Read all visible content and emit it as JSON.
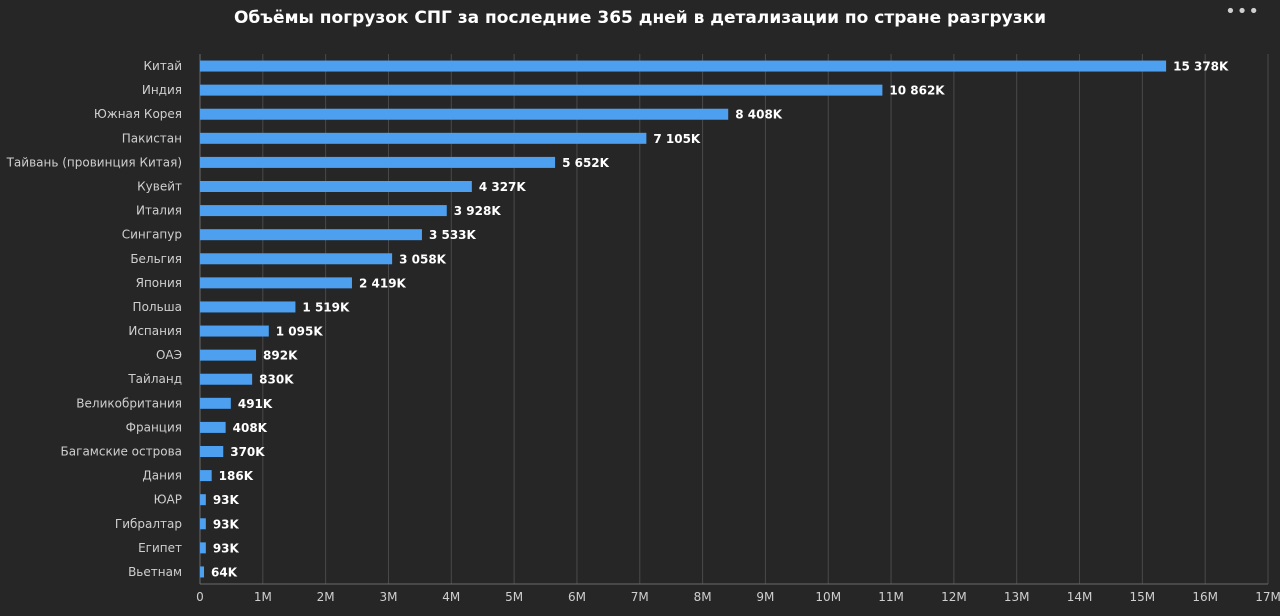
{
  "header": {
    "menu_label": "•••"
  },
  "colors": {
    "background": "#262626",
    "bar": "#4d9ff0",
    "grid": "#4a4a4a",
    "text": "#cfcfcf"
  },
  "chart_data": {
    "type": "bar",
    "orientation": "horizontal",
    "title": "Объёмы погрузок СПГ за последние 365 дней в детализации по стране разгрузки",
    "categories": [
      "Китай",
      "Индия",
      "Южная Корея",
      "Пакистан",
      "Тайвань (провинция Китая)",
      "Кувейт",
      "Италия",
      "Сингапур",
      "Бельгия",
      "Япония",
      "Польша",
      "Испания",
      "ОАЭ",
      "Тайланд",
      "Великобритания",
      "Франция",
      "Багамские острова",
      "Дания",
      "ЮАР",
      "Гибралтар",
      "Египет",
      "Вьетнам"
    ],
    "values": [
      15378,
      10862,
      8408,
      7105,
      5652,
      4327,
      3928,
      3533,
      3058,
      2419,
      1519,
      1095,
      892,
      830,
      491,
      408,
      370,
      186,
      93,
      93,
      93,
      64
    ],
    "data_labels": [
      "15 378K",
      "10 862K",
      "8 408K",
      "7 105K",
      "5 652K",
      "4 327K",
      "3 928K",
      "3 533K",
      "3 058K",
      "2 419K",
      "1 519K",
      "1 095K",
      "892K",
      "830K",
      "491K",
      "408K",
      "370K",
      "186K",
      "93K",
      "93K",
      "93K",
      "64K"
    ],
    "x_ticks": [
      "0",
      "1M",
      "2M",
      "3M",
      "4M",
      "5M",
      "6M",
      "7M",
      "8M",
      "9M",
      "10M",
      "11M",
      "12M",
      "13M",
      "14M",
      "15M",
      "16M",
      "17M"
    ],
    "xlim": [
      0,
      17000
    ],
    "xlabel": "",
    "ylabel": "",
    "grid": true,
    "legend": "none"
  }
}
